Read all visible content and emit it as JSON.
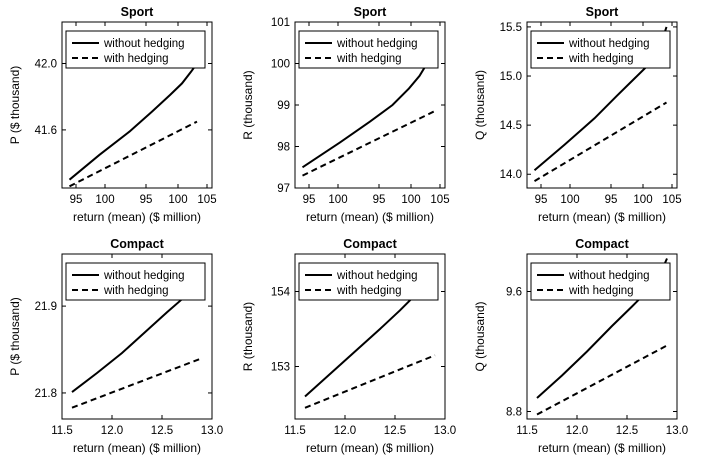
{
  "chart_data": [
    {
      "type": "line",
      "title": "Sport",
      "xlabel": "return (mean) ($ million)",
      "ylabel": "P ($ thousand)",
      "x_tick_labels": [
        "95",
        "100",
        "95",
        "100",
        "105"
      ],
      "y_ticks": [
        41.6,
        42.0
      ],
      "xlim": [
        0,
        1
      ],
      "ylim": [
        41.25,
        42.25
      ],
      "legend_position": "top-left",
      "series": [
        {
          "name": "without hedging",
          "style": "solid",
          "x": [
            0.05,
            0.25,
            0.45,
            0.6,
            0.72,
            0.8,
            0.86,
            0.9,
            0.93
          ],
          "y": [
            41.3,
            41.45,
            41.59,
            41.71,
            41.81,
            41.88,
            41.95,
            42.0,
            42.06
          ]
        },
        {
          "name": "with hedging",
          "style": "dashed",
          "x": [
            0.05,
            0.9
          ],
          "y": [
            41.26,
            41.65
          ]
        }
      ]
    },
    {
      "type": "line",
      "title": "Sport",
      "xlabel": "return (mean) ($ million)",
      "ylabel": "R (thousand)",
      "x_tick_labels": [
        "95",
        "100",
        "95",
        "100",
        "105"
      ],
      "y_ticks": [
        97,
        98,
        99,
        100,
        101
      ],
      "xlim": [
        0,
        1
      ],
      "ylim": [
        97,
        101
      ],
      "legend_position": "top-left",
      "series": [
        {
          "name": "without hedging",
          "style": "solid",
          "x": [
            0.05,
            0.3,
            0.5,
            0.65,
            0.76,
            0.83,
            0.88,
            0.91,
            0.93
          ],
          "y": [
            97.5,
            98.1,
            98.6,
            99.0,
            99.4,
            99.7,
            100.0,
            100.25,
            100.5
          ]
        },
        {
          "name": "with hedging",
          "style": "dashed",
          "x": [
            0.05,
            0.93
          ],
          "y": [
            97.3,
            98.85
          ]
        }
      ]
    },
    {
      "type": "line",
      "title": "Sport",
      "xlabel": "return (mean) ($ million)",
      "ylabel": "Q (thousand)",
      "x_tick_labels": [
        "95",
        "100",
        "95",
        "100",
        "105"
      ],
      "y_ticks": [
        14.0,
        14.5,
        15.0,
        15.5
      ],
      "xlim": [
        0,
        1
      ],
      "ylim": [
        13.86,
        15.55
      ],
      "legend_position": "top-left",
      "series": [
        {
          "name": "without hedging",
          "style": "solid",
          "x": [
            0.05,
            0.25,
            0.45,
            0.6,
            0.72,
            0.8,
            0.86,
            0.9,
            0.93
          ],
          "y": [
            14.04,
            14.3,
            14.57,
            14.8,
            14.98,
            15.1,
            15.22,
            15.36,
            15.5
          ]
        },
        {
          "name": "with hedging",
          "style": "dashed",
          "x": [
            0.05,
            0.93
          ],
          "y": [
            13.93,
            14.73
          ]
        }
      ]
    },
    {
      "type": "line",
      "title": "Compact",
      "xlabel": "return (mean) ($ million)",
      "ylabel": "P ($ thousand)",
      "x_tick_labels": [
        "11.5",
        "12.0",
        "12.5",
        "13.0"
      ],
      "xlim": [
        11.5,
        13.0
      ],
      "y_ticks": [
        21.8,
        21.9
      ],
      "ylim": [
        21.77,
        21.96
      ],
      "legend_position": "top-left",
      "series": [
        {
          "name": "without hedging",
          "style": "solid",
          "x": [
            11.6,
            11.85,
            12.1,
            12.35,
            12.55,
            12.7,
            12.8,
            12.86,
            12.9
          ],
          "y": [
            21.801,
            21.823,
            21.846,
            21.872,
            21.893,
            21.908,
            21.92,
            21.932,
            21.945
          ]
        },
        {
          "name": "with hedging",
          "style": "dashed",
          "x": [
            11.6,
            12.9
          ],
          "y": [
            21.783,
            21.84
          ]
        }
      ]
    },
    {
      "type": "line",
      "title": "Compact",
      "xlabel": "return (mean) ($ million)",
      "ylabel": "R (thousand)",
      "x_tick_labels": [
        "11.5",
        "12.0",
        "12.5",
        "13.0"
      ],
      "xlim": [
        11.5,
        13.0
      ],
      "y_ticks": [
        153,
        154
      ],
      "ylim": [
        152.3,
        154.5
      ],
      "legend_position": "top-left",
      "series": [
        {
          "name": "without hedging",
          "style": "solid",
          "x": [
            11.6,
            11.85,
            12.1,
            12.35,
            12.55,
            12.7,
            12.8,
            12.86,
            12.9
          ],
          "y": [
            152.6,
            152.9,
            153.2,
            153.5,
            153.75,
            153.95,
            154.1,
            154.25,
            154.38
          ]
        },
        {
          "name": "with hedging",
          "style": "dashed",
          "x": [
            11.6,
            12.9
          ],
          "y": [
            152.45,
            153.15
          ]
        }
      ]
    },
    {
      "type": "line",
      "title": "Compact",
      "xlabel": "return (mean) ($ million)",
      "ylabel": "Q (thousand)",
      "x_tick_labels": [
        "11.5",
        "12.0",
        "12.5",
        "13.0"
      ],
      "xlim": [
        11.5,
        13.0
      ],
      "y_ticks": [
        8.8,
        9.6
      ],
      "ylim": [
        8.75,
        9.85
      ],
      "legend_position": "top-left",
      "series": [
        {
          "name": "without hedging",
          "style": "solid",
          "x": [
            11.6,
            11.85,
            12.1,
            12.35,
            12.55,
            12.7,
            12.8,
            12.86,
            12.9
          ],
          "y": [
            8.89,
            9.04,
            9.2,
            9.37,
            9.5,
            9.6,
            9.68,
            9.76,
            9.82
          ]
        },
        {
          "name": "with hedging",
          "style": "dashed",
          "x": [
            11.6,
            12.9
          ],
          "y": [
            8.78,
            9.24
          ]
        }
      ]
    }
  ]
}
